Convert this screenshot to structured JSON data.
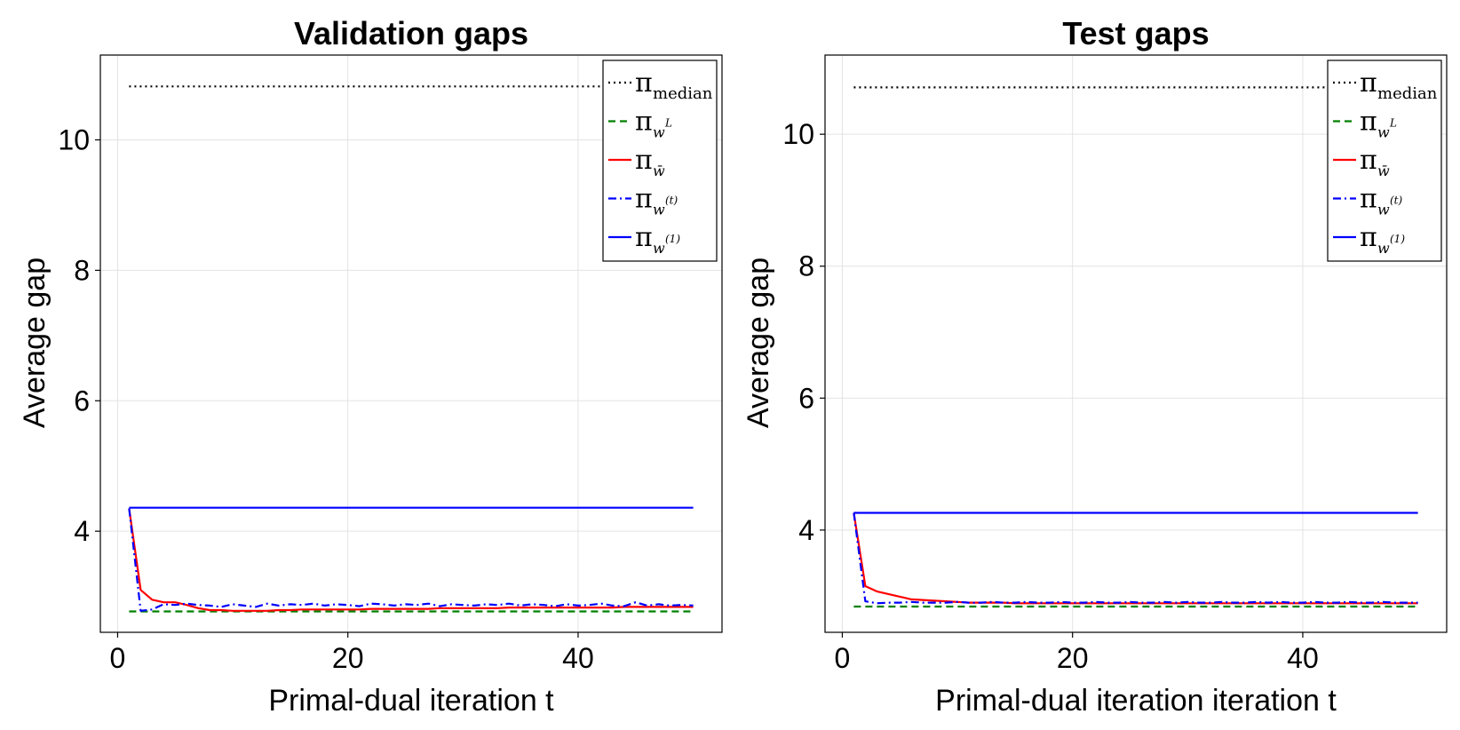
{
  "chart_data": [
    {
      "type": "line",
      "title": "Validation gaps",
      "xlabel": "Primal-dual iteration t",
      "ylabel": "Average gap",
      "xlim": [
        -1.5,
        52.5
      ],
      "ylim": [
        2.45,
        11.3
      ],
      "xticks": [
        0,
        20,
        40
      ],
      "yticks": [
        4,
        6,
        8,
        10
      ],
      "grid": true,
      "legend_position": "top-right",
      "series": [
        {
          "name": "π_median",
          "symbol": "π",
          "sub": "median",
          "sup": "",
          "color": "#000000",
          "style": "dotted",
          "x": [
            1,
            50
          ],
          "y": [
            10.82,
            10.82
          ]
        },
        {
          "name": "π_{w^L}",
          "symbol": "π",
          "sub": "w",
          "sup": "L",
          "color": "#008000",
          "style": "dashed",
          "x": [
            1,
            50
          ],
          "y": [
            2.77,
            2.77
          ]
        },
        {
          "name": "π_{w̄}",
          "symbol": "π",
          "sub": "w̄",
          "sup": "",
          "color": "#ff0000",
          "style": "solid",
          "x": [
            1,
            2,
            3,
            4,
            5,
            6,
            7,
            8,
            9,
            10,
            11,
            12,
            13,
            14,
            15,
            16,
            17,
            18,
            19,
            20,
            21,
            22,
            23,
            24,
            25,
            26,
            27,
            28,
            29,
            30,
            31,
            32,
            33,
            34,
            35,
            36,
            37,
            38,
            39,
            40,
            41,
            42,
            43,
            44,
            45,
            46,
            47,
            48,
            49,
            50
          ],
          "y": [
            4.35,
            3.1,
            2.95,
            2.91,
            2.91,
            2.87,
            2.82,
            2.79,
            2.79,
            2.78,
            2.78,
            2.78,
            2.78,
            2.79,
            2.79,
            2.8,
            2.8,
            2.8,
            2.8,
            2.8,
            2.8,
            2.81,
            2.81,
            2.81,
            2.81,
            2.81,
            2.81,
            2.82,
            2.82,
            2.82,
            2.82,
            2.82,
            2.82,
            2.83,
            2.83,
            2.83,
            2.83,
            2.83,
            2.83,
            2.83,
            2.83,
            2.83,
            2.83,
            2.84,
            2.84,
            2.84,
            2.84,
            2.84,
            2.84,
            2.84
          ]
        },
        {
          "name": "π_{w^(t)}",
          "symbol": "π",
          "sub": "w",
          "sup": "(t)",
          "color": "#0000ff",
          "style": "dashdot",
          "x": [
            1,
            2,
            3,
            4,
            5,
            6,
            7,
            8,
            9,
            10,
            11,
            12,
            13,
            14,
            15,
            16,
            17,
            18,
            19,
            20,
            21,
            22,
            23,
            24,
            25,
            26,
            27,
            28,
            29,
            30,
            31,
            32,
            33,
            34,
            35,
            36,
            37,
            38,
            39,
            40,
            41,
            42,
            43,
            44,
            45,
            46,
            47,
            48,
            49,
            50
          ],
          "y": [
            4.35,
            2.78,
            2.8,
            2.88,
            2.87,
            2.89,
            2.87,
            2.86,
            2.84,
            2.88,
            2.86,
            2.84,
            2.89,
            2.86,
            2.88,
            2.87,
            2.89,
            2.86,
            2.88,
            2.87,
            2.85,
            2.89,
            2.88,
            2.86,
            2.88,
            2.87,
            2.89,
            2.85,
            2.88,
            2.87,
            2.86,
            2.88,
            2.87,
            2.89,
            2.86,
            2.88,
            2.87,
            2.85,
            2.88,
            2.86,
            2.87,
            2.89,
            2.86,
            2.85,
            2.91,
            2.86,
            2.88,
            2.86,
            2.87,
            2.86
          ]
        },
        {
          "name": "π_{w^(1)}",
          "symbol": "π",
          "sub": "w",
          "sup": "(1)",
          "color": "#0000ff",
          "style": "solid",
          "x": [
            1,
            50
          ],
          "y": [
            4.36,
            4.36
          ]
        }
      ]
    },
    {
      "type": "line",
      "title": "Test gaps",
      "xlabel": "Primal-dual iteration iteration t",
      "ylabel": "Average gap",
      "xlim": [
        -1.5,
        52.5
      ],
      "ylim": [
        2.45,
        11.2
      ],
      "xticks": [
        0,
        20,
        40
      ],
      "yticks": [
        4,
        6,
        8,
        10
      ],
      "grid": true,
      "legend_position": "top-right",
      "series": [
        {
          "name": "π_median",
          "symbol": "π",
          "sub": "median",
          "sup": "",
          "color": "#000000",
          "style": "dotted",
          "x": [
            1,
            50
          ],
          "y": [
            10.71,
            10.71
          ]
        },
        {
          "name": "π_{w^L}",
          "symbol": "π",
          "sub": "w",
          "sup": "L",
          "color": "#008000",
          "style": "dashed",
          "x": [
            1,
            50
          ],
          "y": [
            2.84,
            2.84
          ]
        },
        {
          "name": "π_{w̄}",
          "symbol": "π",
          "sub": "w̄",
          "sup": "",
          "color": "#ff0000",
          "style": "solid",
          "x": [
            1,
            2,
            3,
            4,
            5,
            6,
            7,
            8,
            9,
            10,
            11,
            12,
            13,
            14,
            15,
            16,
            17,
            18,
            19,
            20,
            21,
            22,
            23,
            24,
            25,
            26,
            27,
            28,
            29,
            30,
            31,
            32,
            33,
            34,
            35,
            36,
            37,
            38,
            39,
            40,
            41,
            42,
            43,
            44,
            45,
            46,
            47,
            48,
            49,
            50
          ],
          "y": [
            4.26,
            3.15,
            3.07,
            3.03,
            2.99,
            2.95,
            2.94,
            2.93,
            2.92,
            2.91,
            2.9,
            2.9,
            2.9,
            2.9,
            2.89,
            2.89,
            2.89,
            2.89,
            2.89,
            2.89,
            2.89,
            2.89,
            2.89,
            2.89,
            2.89,
            2.89,
            2.89,
            2.89,
            2.89,
            2.89,
            2.89,
            2.89,
            2.89,
            2.89,
            2.89,
            2.89,
            2.89,
            2.89,
            2.89,
            2.89,
            2.89,
            2.89,
            2.89,
            2.89,
            2.89,
            2.89,
            2.89,
            2.89,
            2.89,
            2.89
          ]
        },
        {
          "name": "π_{w^(t)}",
          "symbol": "π",
          "sub": "w",
          "sup": "(t)",
          "color": "#0000ff",
          "style": "dashdot",
          "x": [
            1,
            2,
            3,
            4,
            5,
            6,
            7,
            8,
            9,
            10,
            11,
            12,
            13,
            14,
            15,
            16,
            17,
            18,
            19,
            20,
            21,
            22,
            23,
            24,
            25,
            26,
            27,
            28,
            29,
            30,
            31,
            32,
            33,
            34,
            35,
            36,
            37,
            38,
            39,
            40,
            41,
            42,
            43,
            44,
            45,
            46,
            47,
            48,
            49,
            50
          ],
          "y": [
            4.26,
            2.92,
            2.89,
            2.9,
            2.9,
            2.91,
            2.9,
            2.9,
            2.9,
            2.91,
            2.9,
            2.9,
            2.91,
            2.9,
            2.9,
            2.91,
            2.9,
            2.9,
            2.91,
            2.9,
            2.9,
            2.91,
            2.9,
            2.9,
            2.91,
            2.9,
            2.9,
            2.91,
            2.9,
            2.91,
            2.9,
            2.9,
            2.91,
            2.9,
            2.9,
            2.91,
            2.9,
            2.91,
            2.9,
            2.9,
            2.91,
            2.9,
            2.9,
            2.91,
            2.9,
            2.9,
            2.91,
            2.9,
            2.9,
            2.9
          ]
        },
        {
          "name": "π_{w^(1)}",
          "symbol": "π",
          "sub": "w",
          "sup": "(1)",
          "color": "#0000ff",
          "style": "solid",
          "x": [
            1,
            50
          ],
          "y": [
            4.26,
            4.26
          ]
        }
      ]
    }
  ]
}
